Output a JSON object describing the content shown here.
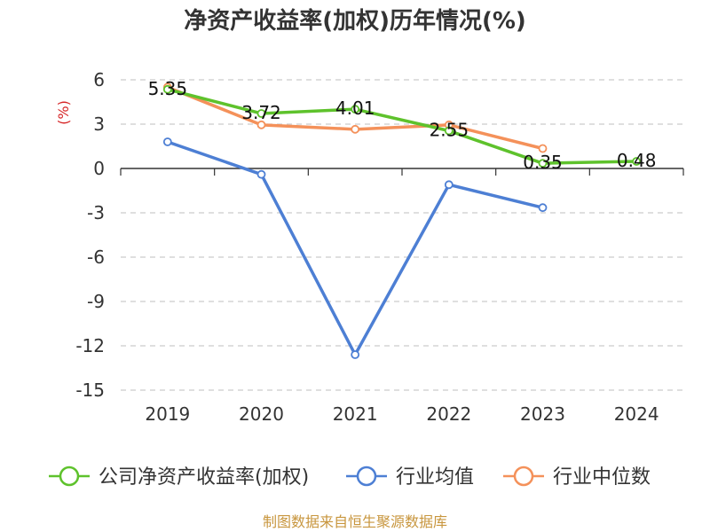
{
  "chart_data": {
    "type": "line",
    "title": "净资产收益率(加权)历年情况(%)",
    "y_unit": "(%)",
    "categories": [
      "2019",
      "2020",
      "2021",
      "2022",
      "2023",
      "2024"
    ],
    "y_ticks": [
      "6",
      "3",
      "0",
      "-3",
      "-6",
      "-9",
      "-12",
      "-15"
    ],
    "ylim": [
      -15,
      6
    ],
    "grid": true,
    "legend_position": "bottom",
    "series": [
      {
        "name": "公司净资产收益率(加权)",
        "color": "#5ec22c",
        "values": [
          5.35,
          3.72,
          4.01,
          2.55,
          0.35,
          0.48
        ],
        "labels": [
          "5.35",
          "3.72",
          "4.01",
          "2.55",
          "0.35",
          "0.48"
        ]
      },
      {
        "name": "行业均值",
        "color": "#4d7fd4",
        "values": [
          1.8,
          -0.4,
          -12.6,
          -1.1,
          -2.65,
          null
        ]
      },
      {
        "name": "行业中位数",
        "color": "#f4915a",
        "values": [
          5.5,
          2.95,
          2.65,
          2.95,
          1.35,
          null
        ]
      }
    ],
    "source": "制图数据来自恒生聚源数据库"
  }
}
